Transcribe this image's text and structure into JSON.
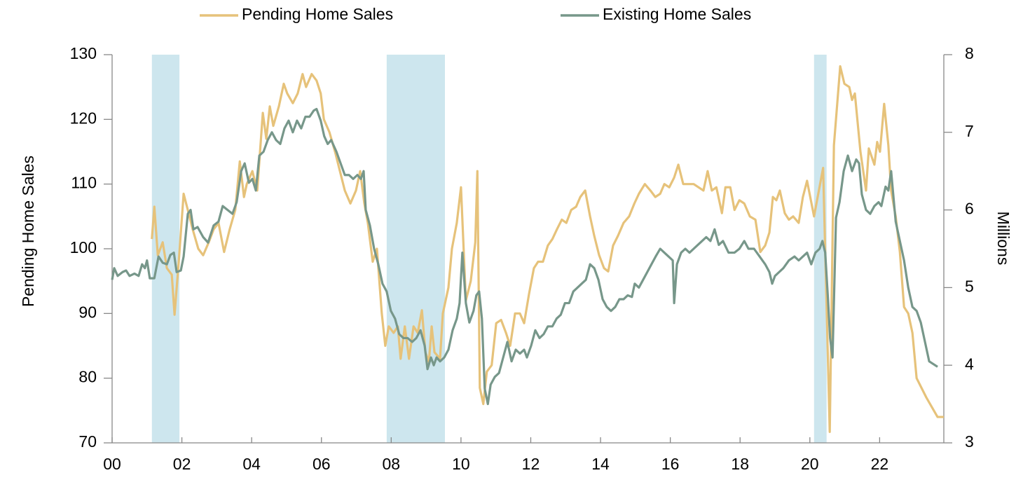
{
  "chart_data": {
    "type": "line",
    "ylabel": "Pending Home Sales",
    "y2label": "Millions",
    "xlim": [
      2000,
      2023.84
    ],
    "xticks": [
      {
        "value": 2000,
        "label": "00"
      },
      {
        "value": 2002,
        "label": "02"
      },
      {
        "value": 2004,
        "label": "04"
      },
      {
        "value": 2006,
        "label": "06"
      },
      {
        "value": 2008,
        "label": "08"
      },
      {
        "value": 2010,
        "label": "10"
      },
      {
        "value": 2012,
        "label": "12"
      },
      {
        "value": 2014,
        "label": "14"
      },
      {
        "value": 2016,
        "label": "16"
      },
      {
        "value": 2018,
        "label": "18"
      },
      {
        "value": 2020,
        "label": "20"
      },
      {
        "value": 2022,
        "label": "22"
      }
    ],
    "ylim": [
      70,
      130
    ],
    "yticks": [
      70,
      80,
      90,
      100,
      110,
      120,
      130
    ],
    "y2lim": [
      3,
      8
    ],
    "y2ticks": [
      3,
      4,
      5,
      6,
      7,
      8
    ],
    "grid": false,
    "legend": "top",
    "shade_color": "#cde6ee",
    "shaded_regions": [
      [
        2001.14,
        2001.93
      ],
      [
        2007.87,
        2009.54
      ],
      [
        2020.12,
        2020.48
      ]
    ],
    "series": [
      {
        "name": "Pending Home Sales",
        "color": "#e6c27a",
        "x": [
          2001.14,
          2001.21,
          2001.31,
          2001.45,
          2001.57,
          2001.71,
          2001.79,
          2001.91,
          2002.05,
          2002.17,
          2002.31,
          2002.47,
          2002.61,
          2002.77,
          2002.91,
          2003.05,
          2003.21,
          2003.37,
          2003.53,
          2003.66,
          2003.78,
          2003.86,
          2004.02,
          2004.16,
          2004.32,
          2004.42,
          2004.52,
          2004.62,
          2004.78,
          2004.92,
          2005.02,
          2005.18,
          2005.32,
          2005.46,
          2005.56,
          2005.72,
          2005.86,
          2005.98,
          2006.07,
          2006.23,
          2006.39,
          2006.53,
          2006.67,
          2006.83,
          2006.99,
          2007.11,
          2007.23,
          2007.33,
          2007.47,
          2007.59,
          2007.73,
          2007.83,
          2007.93,
          2008.07,
          2008.19,
          2008.27,
          2008.39,
          2008.51,
          2008.64,
          2008.76,
          2008.88,
          2008.98,
          2009.08,
          2009.16,
          2009.24,
          2009.4,
          2009.48,
          2009.64,
          2009.74,
          2009.88,
          2010.0,
          2010.14,
          2010.28,
          2010.41,
          2010.47,
          2010.54,
          2010.64,
          2010.74,
          2010.88,
          2011.01,
          2011.15,
          2011.29,
          2011.41,
          2011.55,
          2011.69,
          2011.81,
          2011.95,
          2012.09,
          2012.21,
          2012.35,
          2012.49,
          2012.62,
          2012.75,
          2012.89,
          2013.02,
          2013.16,
          2013.3,
          2013.42,
          2013.56,
          2013.7,
          2013.82,
          2013.96,
          2014.1,
          2014.22,
          2014.36,
          2014.5,
          2014.66,
          2014.82,
          2014.97,
          2015.1,
          2015.27,
          2015.43,
          2015.57,
          2015.71,
          2015.83,
          2015.97,
          2016.11,
          2016.23,
          2016.37,
          2016.67,
          2016.95,
          2017.07,
          2017.19,
          2017.32,
          2017.48,
          2017.58,
          2017.72,
          2017.84,
          2017.98,
          2018.12,
          2018.28,
          2018.44,
          2018.58,
          2018.72,
          2018.84,
          2018.94,
          2019.04,
          2019.14,
          2019.28,
          2019.4,
          2019.52,
          2019.68,
          2019.8,
          2019.92,
          2020.12,
          2020.38,
          2020.57,
          2020.69,
          2020.87,
          2020.99,
          2021.13,
          2021.21,
          2021.29,
          2021.45,
          2021.61,
          2021.69,
          2021.85,
          2021.93,
          2022.01,
          2022.13,
          2022.25,
          2022.33,
          2022.46,
          2022.58,
          2022.7,
          2022.82,
          2022.94,
          2023.06,
          2023.34,
          2023.66,
          2023.84
        ],
        "values": [
          101.5,
          106.5,
          99,
          101,
          97,
          96,
          89.8,
          98,
          108.5,
          106,
          103,
          100,
          99,
          101,
          103,
          104,
          99.5,
          103,
          106,
          113.5,
          108,
          110,
          112,
          109,
          121,
          117,
          122,
          119,
          122,
          125.5,
          124,
          122.5,
          124,
          127,
          125,
          127,
          126,
          124,
          120,
          118,
          115,
          112,
          109,
          107,
          109,
          112,
          107,
          104,
          98,
          100,
          90,
          85,
          88,
          87,
          88,
          83,
          88,
          83,
          88,
          87,
          90.5,
          84,
          82.5,
          88,
          84,
          83,
          90,
          94,
          100,
          104,
          109.5,
          92,
          95,
          101,
          112,
          78.5,
          76,
          81,
          82,
          88.5,
          89,
          87,
          85,
          90,
          90,
          88.5,
          93,
          97,
          98,
          98,
          100.5,
          101.5,
          103,
          104.5,
          104,
          106,
          106.5,
          108,
          109,
          105,
          102,
          99,
          97,
          96.5,
          100.5,
          102,
          104,
          105,
          107,
          108.5,
          110,
          109,
          108,
          108.5,
          110,
          109.5,
          111,
          113,
          110,
          110,
          109,
          112,
          109,
          109.5,
          105.5,
          109.5,
          109.5,
          106,
          107.5,
          107,
          105,
          104.5,
          99.5,
          100.5,
          102.5,
          108,
          107.5,
          109,
          105.5,
          104.5,
          105,
          104,
          108,
          110.5,
          105,
          112.5,
          71.7,
          116,
          128.2,
          125.5,
          125,
          123,
          124,
          115,
          109,
          115.5,
          113,
          116.5,
          115,
          122.4,
          116,
          109,
          105,
          99.5,
          91,
          90,
          87,
          80,
          77,
          74,
          74
        ]
      },
      {
        "name": "Existing Home Sales",
        "color": "#77978a",
        "axis": "y2",
        "x": [
          2000.0,
          2000.06,
          2000.16,
          2000.3,
          2000.4,
          2000.5,
          2000.64,
          2000.76,
          2000.86,
          2000.94,
          2001.0,
          2001.08,
          2001.21,
          2001.33,
          2001.45,
          2001.57,
          2001.67,
          2001.77,
          2001.85,
          2001.97,
          2002.05,
          2002.17,
          2002.25,
          2002.33,
          2002.45,
          2002.61,
          2002.75,
          2002.91,
          2003.05,
          2003.17,
          2003.31,
          2003.45,
          2003.57,
          2003.7,
          2003.8,
          2003.92,
          2004.02,
          2004.12,
          2004.22,
          2004.34,
          2004.46,
          2004.58,
          2004.7,
          2004.82,
          2004.94,
          2005.06,
          2005.18,
          2005.3,
          2005.42,
          2005.54,
          2005.66,
          2005.78,
          2005.86,
          2005.98,
          2006.08,
          2006.18,
          2006.28,
          2006.43,
          2006.55,
          2006.67,
          2006.79,
          2006.91,
          2007.03,
          2007.13,
          2007.21,
          2007.27,
          2007.39,
          2007.51,
          2007.63,
          2007.75,
          2007.87,
          2007.99,
          2008.11,
          2008.23,
          2008.35,
          2008.47,
          2008.6,
          2008.72,
          2008.84,
          2008.96,
          2009.04,
          2009.14,
          2009.22,
          2009.3,
          2009.4,
          2009.52,
          2009.64,
          2009.76,
          2009.88,
          2009.96,
          2010.04,
          2010.14,
          2010.24,
          2010.36,
          2010.44,
          2010.52,
          2010.6,
          2010.68,
          2010.77,
          2010.85,
          2010.97,
          2011.09,
          2011.21,
          2011.33,
          2011.45,
          2011.57,
          2011.69,
          2011.81,
          2011.89,
          2012.01,
          2012.13,
          2012.25,
          2012.37,
          2012.49,
          2012.62,
          2012.74,
          2012.86,
          2012.98,
          2013.1,
          2013.22,
          2013.34,
          2013.46,
          2013.58,
          2013.7,
          2013.82,
          2013.94,
          2014.06,
          2014.18,
          2014.3,
          2014.42,
          2014.54,
          2014.66,
          2014.78,
          2014.9,
          2014.98,
          2015.1,
          2015.22,
          2015.34,
          2015.46,
          2015.58,
          2015.71,
          2015.83,
          2015.95,
          2016.07,
          2016.11,
          2016.19,
          2016.31,
          2016.43,
          2016.55,
          2016.67,
          2016.79,
          2016.91,
          2017.03,
          2017.15,
          2017.27,
          2017.39,
          2017.51,
          2017.67,
          2017.84,
          2017.98,
          2018.12,
          2018.24,
          2018.4,
          2018.56,
          2018.72,
          2018.84,
          2018.92,
          2019.0,
          2019.12,
          2019.24,
          2019.4,
          2019.56,
          2019.68,
          2019.8,
          2019.92,
          2020.04,
          2020.16,
          2020.28,
          2020.36,
          2020.44,
          2020.52,
          2020.58,
          2020.65,
          2020.75,
          2020.85,
          2020.97,
          2021.09,
          2021.21,
          2021.33,
          2021.41,
          2021.49,
          2021.61,
          2021.73,
          2021.85,
          2021.97,
          2022.05,
          2022.17,
          2022.25,
          2022.33,
          2022.46,
          2022.58,
          2022.7,
          2022.82,
          2022.94,
          2023.06,
          2023.18,
          2023.3,
          2023.42,
          2023.66
        ],
        "values": [
          5.1,
          5.25,
          5.15,
          5.2,
          5.22,
          5.15,
          5.18,
          5.15,
          5.3,
          5.25,
          5.35,
          5.12,
          5.12,
          5.4,
          5.32,
          5.3,
          5.42,
          5.45,
          5.2,
          5.22,
          5.4,
          5.95,
          6.0,
          5.75,
          5.78,
          5.65,
          5.58,
          5.8,
          5.85,
          6.05,
          6.0,
          5.95,
          6.1,
          6.5,
          6.6,
          6.35,
          6.4,
          6.25,
          6.7,
          6.75,
          6.9,
          7.0,
          6.9,
          6.85,
          7.05,
          7.15,
          7.0,
          7.15,
          7.05,
          7.2,
          7.2,
          7.28,
          7.3,
          7.15,
          6.95,
          6.85,
          6.9,
          6.75,
          6.6,
          6.45,
          6.45,
          6.4,
          6.45,
          6.4,
          6.5,
          6.0,
          5.8,
          5.5,
          5.3,
          5.05,
          4.95,
          4.7,
          4.6,
          4.4,
          4.35,
          4.35,
          4.3,
          4.35,
          4.45,
          4.25,
          3.95,
          4.1,
          4.0,
          4.1,
          4.05,
          4.1,
          4.2,
          4.45,
          4.6,
          4.8,
          5.45,
          4.8,
          4.55,
          4.7,
          4.9,
          4.95,
          4.6,
          3.7,
          3.5,
          3.75,
          3.85,
          3.9,
          4.1,
          4.3,
          4.05,
          4.2,
          4.15,
          4.2,
          4.1,
          4.25,
          4.45,
          4.35,
          4.4,
          4.5,
          4.5,
          4.6,
          4.65,
          4.8,
          4.8,
          4.95,
          5.0,
          5.05,
          5.1,
          5.3,
          5.25,
          5.1,
          4.85,
          4.75,
          4.7,
          4.75,
          4.85,
          4.85,
          4.9,
          4.88,
          5.05,
          5.0,
          5.1,
          5.2,
          5.3,
          5.4,
          5.5,
          5.45,
          5.4,
          5.35,
          4.8,
          5.3,
          5.45,
          5.5,
          5.45,
          5.5,
          5.55,
          5.6,
          5.65,
          5.6,
          5.75,
          5.55,
          5.6,
          5.45,
          5.45,
          5.5,
          5.6,
          5.5,
          5.5,
          5.4,
          5.3,
          5.2,
          5.05,
          5.15,
          5.2,
          5.25,
          5.35,
          5.4,
          5.35,
          5.4,
          5.45,
          5.3,
          5.45,
          5.5,
          5.6,
          5.45,
          4.85,
          4.35,
          4.1,
          5.9,
          6.1,
          6.5,
          6.7,
          6.5,
          6.65,
          6.6,
          6.2,
          6.0,
          5.95,
          6.05,
          6.1,
          6.05,
          6.3,
          6.25,
          6.5,
          5.85,
          5.6,
          5.35,
          5.0,
          4.75,
          4.7,
          4.55,
          4.3,
          4.05,
          3.98
        ]
      }
    ]
  }
}
